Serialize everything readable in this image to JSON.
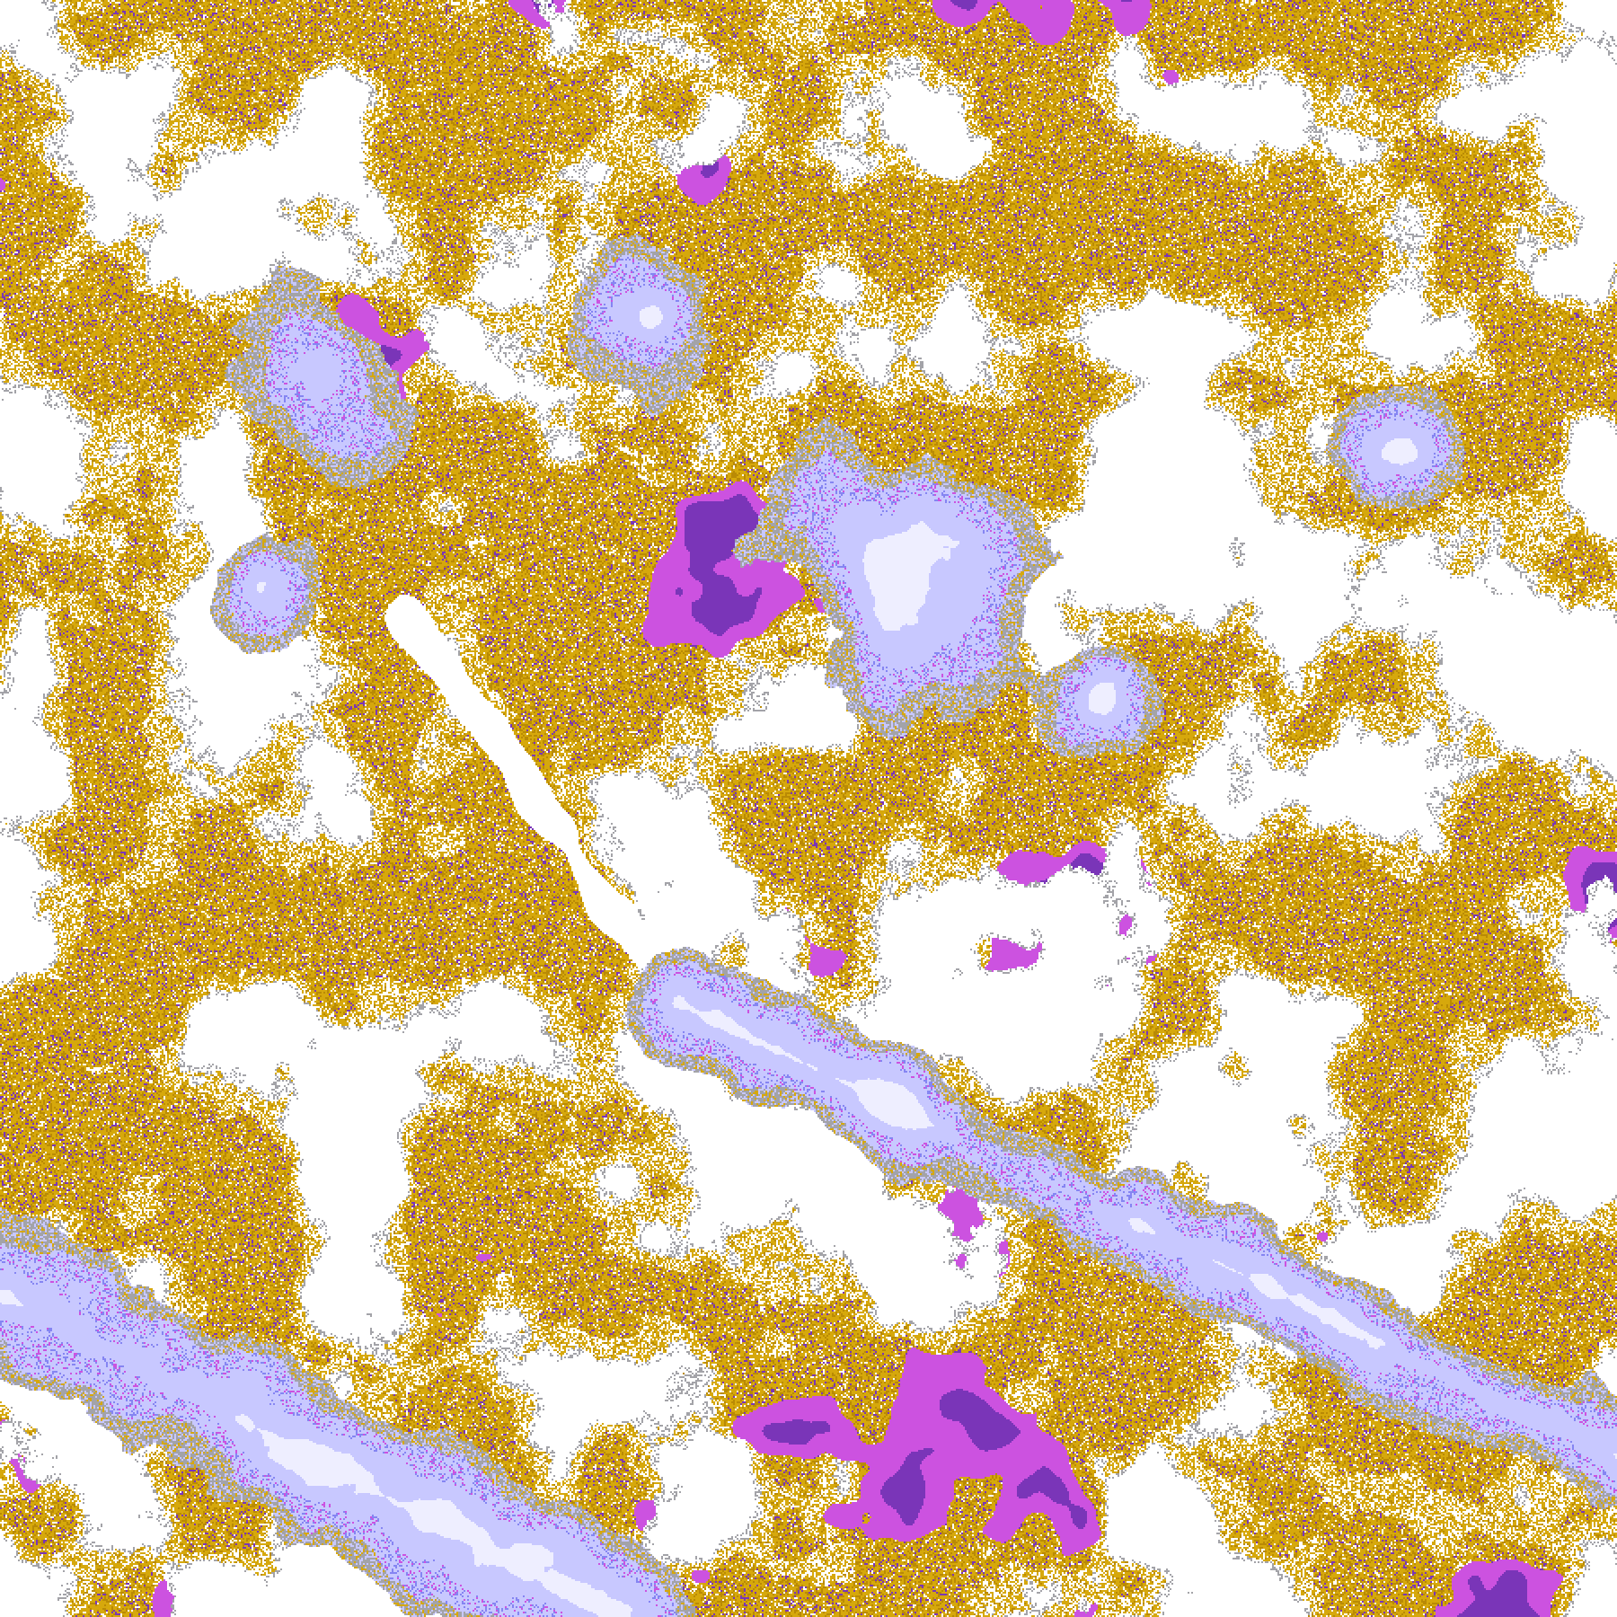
{
  "map": {
    "palette": {
      "background": "#ffffff",
      "gold": "#d6a80c",
      "dark_gold": "#b98a05",
      "gray": "#a3a3a8",
      "light_lavender": "#c8c8ff",
      "pale_lavender": "#eeeeff",
      "periwinkle": "#8585f2",
      "magenta": "#cc52e0",
      "purple": "#7a35b8"
    }
  }
}
